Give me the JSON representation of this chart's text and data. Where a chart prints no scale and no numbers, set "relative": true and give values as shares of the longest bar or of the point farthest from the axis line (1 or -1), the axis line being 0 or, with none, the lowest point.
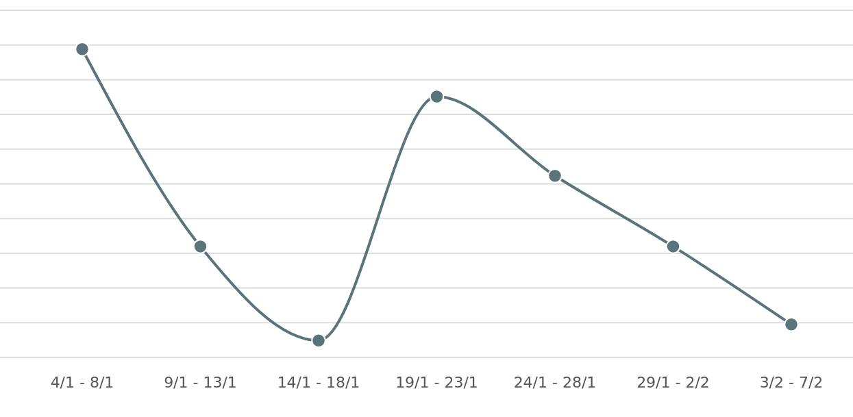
{
  "chart_data": {
    "type": "line",
    "relative": true,
    "categories": [
      "4/1 - 8/1",
      "9/1 - 13/1",
      "14/1 - 18/1",
      "19/1 - 23/1",
      "24/1 - 28/1",
      "29/1 - 2/2",
      "3/2 - 7/2"
    ],
    "series": [
      {
        "color": "#5b747c",
        "values": [
          1,
          0.36,
          0.055,
          0.846,
          0.589,
          0.36,
          0.107
        ]
      }
    ],
    "grid": true,
    "marker": "circle"
  }
}
